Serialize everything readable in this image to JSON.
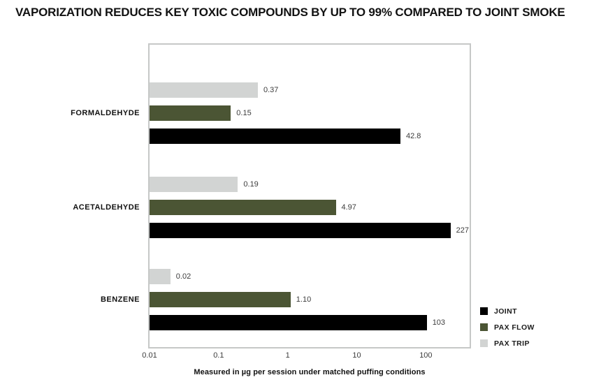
{
  "title": "VAPORIZATION REDUCES KEY TOXIC COMPOUNDS BY UP TO 99% COMPARED TO JOINT SMOKE",
  "chart_data": {
    "type": "bar",
    "orientation": "horizontal",
    "x_scale": "log",
    "x_range": [
      0.01,
      430
    ],
    "x_ticks": [
      "0.01",
      "0.1",
      "1",
      "10",
      "100"
    ],
    "xlabel": "Measured in µg per session under matched puffing conditions",
    "categories": [
      "FORMALDEHYDE",
      "ACETALDEHYDE",
      "BENZENE"
    ],
    "series": [
      {
        "name": "JOINT",
        "color": "#000000",
        "values": [
          42.8,
          227,
          103
        ],
        "labels": [
          "42.8",
          "227",
          "103"
        ]
      },
      {
        "name": "PAX FLOW",
        "color": "#4b5534",
        "values": [
          0.15,
          4.97,
          1.1
        ],
        "labels": [
          "0.15",
          "4.97",
          "1.10"
        ]
      },
      {
        "name": "PAX TRIP",
        "color": "#d2d4d3",
        "values": [
          0.37,
          0.19,
          0.02
        ],
        "labels": [
          "0.37",
          "0.19",
          "0.02"
        ]
      }
    ],
    "bar_order_top_to_bottom": [
      "PAX TRIP",
      "PAX FLOW",
      "JOINT"
    ],
    "legend_position": "bottom-right",
    "grid": false
  },
  "legend": {
    "items": [
      {
        "label": "JOINT",
        "color": "#000000"
      },
      {
        "label": "PAX FLOW",
        "color": "#4b5534"
      },
      {
        "label": "PAX TRIP",
        "color": "#d2d4d3"
      }
    ]
  }
}
